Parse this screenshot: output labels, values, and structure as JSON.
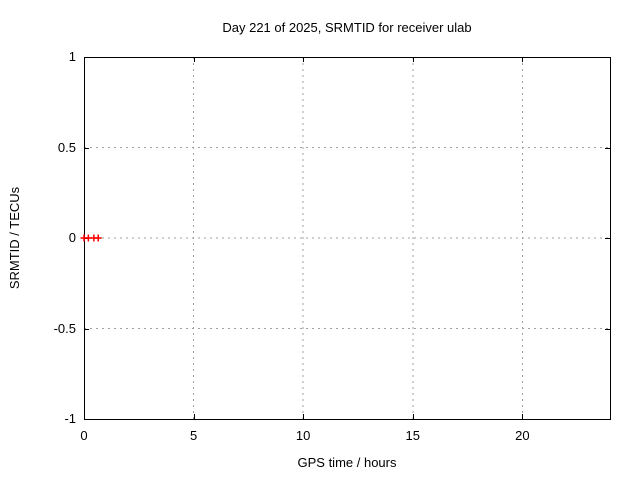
{
  "page": {
    "background": "#ffffff"
  },
  "chart_data": {
    "type": "scatter",
    "title": "Day 221 of 2025, SRMTID for receiver ulab",
    "xlabel": "GPS time / hours",
    "ylabel": "SRMTID / TECUs",
    "xlim": [
      0,
      24
    ],
    "ylim": [
      -1,
      1
    ],
    "x_ticks": [
      {
        "value": 0,
        "label": "0"
      },
      {
        "value": 5,
        "label": "5"
      },
      {
        "value": 10,
        "label": "10"
      },
      {
        "value": 15,
        "label": "15"
      },
      {
        "value": 20,
        "label": "20"
      }
    ],
    "y_ticks": [
      {
        "value": 1,
        "label": "1"
      },
      {
        "value": 0.5,
        "label": "0.5"
      },
      {
        "value": 0,
        "label": "0"
      },
      {
        "value": -0.5,
        "label": "-0.5"
      },
      {
        "value": -1,
        "label": "-1"
      }
    ],
    "grid": true,
    "legend": "none",
    "colors": {
      "marker": "#ff0000",
      "grid": "#a0a0a0",
      "axis": "#000000",
      "text": "#000000"
    },
    "series": [
      {
        "name": "SRMTID",
        "marker": "plus",
        "color": "#ff0000",
        "points": [
          [
            0.0,
            0.0
          ],
          [
            0.2,
            0.0
          ],
          [
            0.45,
            0.0
          ],
          [
            0.65,
            0.0
          ]
        ]
      }
    ]
  }
}
